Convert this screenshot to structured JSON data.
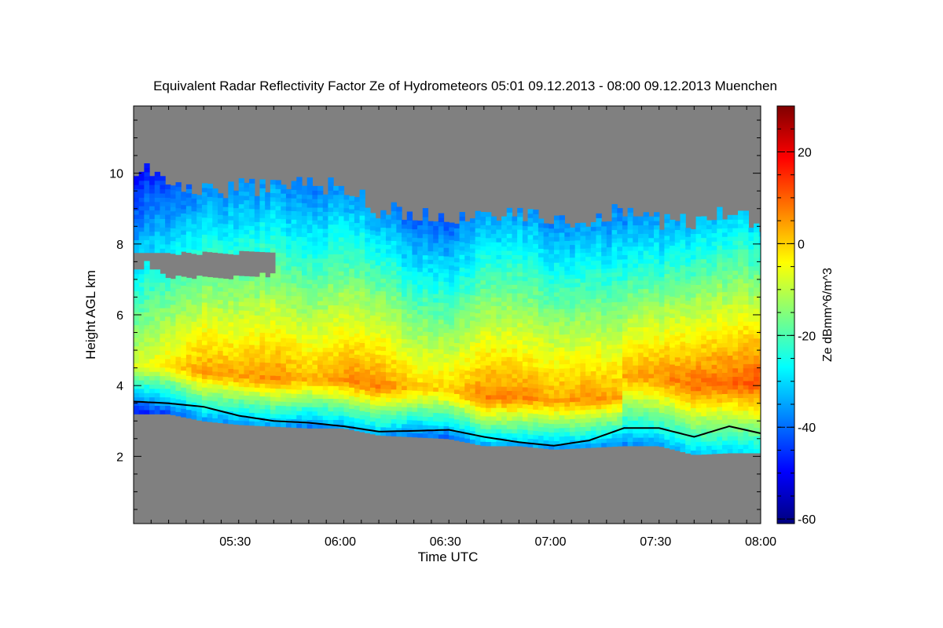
{
  "chart_data": {
    "type": "heatmap",
    "title": "Equivalent Radar Reflectivity Factor Ze of Hydrometeors   05:01 09.12.2013 - 08:00 09.12.2013 Muenchen",
    "xlabel": "Time UTC",
    "ylabel": "Height AGL km",
    "colorbar_label": "Ze dBmm^6/m^3",
    "x_range": [
      "05:01",
      "08:00"
    ],
    "y_range_km": [
      0.1,
      11.9
    ],
    "xtick_labels": [
      "05:30",
      "06:00",
      "06:30",
      "07:00",
      "07:30",
      "08:00"
    ],
    "xtick_minutes": [
      29,
      59,
      89,
      119,
      149,
      179
    ],
    "ytick_labels": [
      "2",
      "4",
      "6",
      "8",
      "10"
    ],
    "ytick_values": [
      2,
      4,
      6,
      8,
      10
    ],
    "colorbar_ticks": [
      "20",
      "0",
      "-20",
      "-40",
      "-60"
    ],
    "colorbar_tick_values": [
      20,
      0,
      -20,
      -40,
      -60
    ],
    "colorbar_range_dBZ": [
      -61,
      30
    ],
    "background_color": "#808080",
    "colormap": [
      "#00007f",
      "#0000ff",
      "#007fff",
      "#00ffff",
      "#7fff7f",
      "#ffff00",
      "#ff7f00",
      "#ff0000",
      "#7f0000"
    ],
    "cloud_top_km": [
      [
        0,
        10.2
      ],
      [
        10,
        9.6
      ],
      [
        20,
        9.4
      ],
      [
        30,
        9.5
      ],
      [
        40,
        9.6
      ],
      [
        50,
        9.7
      ],
      [
        60,
        9.5
      ],
      [
        70,
        8.9
      ],
      [
        80,
        8.8
      ],
      [
        90,
        8.7
      ],
      [
        100,
        8.7
      ],
      [
        110,
        8.8
      ],
      [
        120,
        8.6
      ],
      [
        130,
        8.7
      ],
      [
        140,
        8.9
      ],
      [
        150,
        8.6
      ],
      [
        160,
        8.5
      ],
      [
        170,
        8.9
      ],
      [
        179,
        8.4
      ]
    ],
    "cloud_base_km": [
      [
        0,
        3.2
      ],
      [
        10,
        3.2
      ],
      [
        20,
        3.0
      ],
      [
        30,
        2.9
      ],
      [
        40,
        2.85
      ],
      [
        50,
        2.8
      ],
      [
        60,
        2.8
      ],
      [
        70,
        2.6
      ],
      [
        80,
        2.55
      ],
      [
        90,
        2.5
      ],
      [
        100,
        2.3
      ],
      [
        110,
        2.3
      ],
      [
        120,
        2.2
      ],
      [
        130,
        2.25
      ],
      [
        140,
        2.3
      ],
      [
        150,
        2.3
      ],
      [
        160,
        2.05
      ],
      [
        170,
        2.1
      ],
      [
        179,
        2.1
      ]
    ],
    "ceilometer_km": [
      [
        0,
        3.55
      ],
      [
        10,
        3.5
      ],
      [
        20,
        3.4
      ],
      [
        30,
        3.15
      ],
      [
        40,
        3.0
      ],
      [
        50,
        2.95
      ],
      [
        60,
        2.85
      ],
      [
        70,
        2.7
      ],
      [
        80,
        2.72
      ],
      [
        90,
        2.75
      ],
      [
        100,
        2.55
      ],
      [
        110,
        2.4
      ],
      [
        120,
        2.3
      ],
      [
        130,
        2.45
      ],
      [
        140,
        2.8
      ],
      [
        150,
        2.8
      ],
      [
        160,
        2.55
      ],
      [
        170,
        2.85
      ],
      [
        179,
        2.65
      ]
    ],
    "ze_peak_dBZ": [
      [
        0,
        -8
      ],
      [
        10,
        -2
      ],
      [
        20,
        5
      ],
      [
        30,
        4
      ],
      [
        40,
        6
      ],
      [
        50,
        2
      ],
      [
        60,
        6
      ],
      [
        70,
        7
      ],
      [
        80,
        1
      ],
      [
        90,
        0
      ],
      [
        100,
        7
      ],
      [
        110,
        7
      ],
      [
        120,
        4
      ],
      [
        130,
        6
      ],
      [
        140,
        3
      ],
      [
        150,
        6
      ],
      [
        160,
        9
      ],
      [
        170,
        10
      ],
      [
        179,
        12
      ]
    ]
  }
}
